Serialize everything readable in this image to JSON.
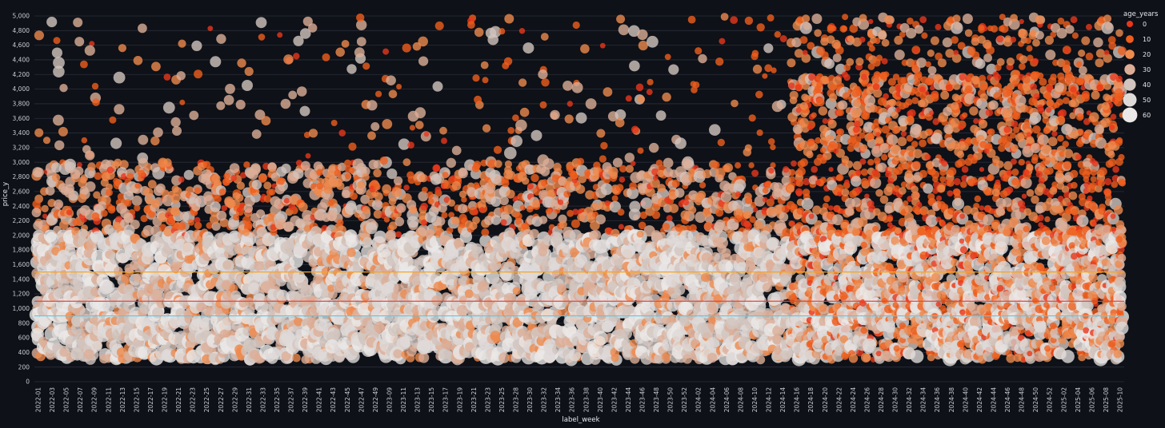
{
  "chart_data": {
    "type": "scatter",
    "xlabel": "label_week",
    "ylabel": "price_y",
    "ylim": [
      0,
      5000
    ],
    "y_ticks": [
      "0",
      "200",
      "400",
      "600",
      "800",
      "1,000",
      "1,200",
      "1,400",
      "1,600",
      "1,800",
      "2,000",
      "2,200",
      "2,400",
      "2,600",
      "2,800",
      "3,000",
      "3,200",
      "3,400",
      "3,600",
      "3,800",
      "4,000",
      "4,200",
      "4,400",
      "4,600",
      "4,800",
      "5,000"
    ],
    "y_tick_values": [
      0,
      200,
      400,
      600,
      800,
      1000,
      1200,
      1400,
      1600,
      1800,
      2000,
      2200,
      2400,
      2600,
      2800,
      3000,
      3200,
      3400,
      3600,
      3800,
      4000,
      4200,
      4400,
      4600,
      4800,
      5000
    ],
    "x_start_week": "2022-01",
    "x_end_week": "2025-10",
    "x_tick_labels": [
      "2022-01",
      "2022-03",
      "2022-05",
      "2022-07",
      "2022-09",
      "2022-11",
      "2022-13",
      "2022-15",
      "2022-17",
      "2022-19",
      "2022-21",
      "2022-23",
      "2022-25",
      "2022-27",
      "2022-29",
      "2022-31",
      "2022-33",
      "2022-35",
      "2022-37",
      "2022-39",
      "2022-41",
      "2022-43",
      "2022-45",
      "2022-47",
      "2022-49",
      "2023-09",
      "2023-11",
      "2023-13",
      "2023-15",
      "2023-17",
      "2023-19",
      "2023-21",
      "2023-23",
      "2023-25",
      "2023-28",
      "2023-30",
      "2023-32",
      "2023-34",
      "2023-36",
      "2023-38",
      "2023-40",
      "2023-42",
      "2023-44",
      "2023-46",
      "2023-48",
      "2023-50",
      "2023-52",
      "2024-02",
      "2024-04",
      "2024-06",
      "2024-08",
      "2024-10",
      "2024-12",
      "2024-14",
      "2024-16",
      "2024-18",
      "2024-20",
      "2024-22",
      "2024-24",
      "2024-26",
      "2024-28",
      "2024-30",
      "2024-32",
      "2024-34",
      "2024-36",
      "2024-38",
      "2024-40",
      "2024-42",
      "2024-44",
      "2024-46",
      "2024-48",
      "2024-50",
      "2024-52",
      "2025-02",
      "2025-04",
      "2025-06",
      "2025-08",
      "2025-10"
    ],
    "reference_lines": [
      {
        "y": 1500,
        "color": "#f5a623"
      },
      {
        "y": 1100,
        "color": "#e8453c"
      },
      {
        "y": 900,
        "color": "#5bc8e8"
      }
    ],
    "legend": {
      "title": "age_years",
      "placement": "top-right",
      "entries": [
        {
          "label": "0",
          "color": "#e8371b"
        },
        {
          "label": "10",
          "color": "#ef5e1d"
        },
        {
          "label": "20",
          "color": "#ee8a4e"
        },
        {
          "label": "30",
          "color": "#dcae97"
        },
        {
          "label": "40",
          "color": "#d2c4be"
        },
        {
          "label": "50",
          "color": "#dedad8"
        },
        {
          "label": "60",
          "color": "#ebe8e7"
        }
      ]
    },
    "density_description_values": {
      "point_age_range": [
        0,
        60
      ],
      "price_floor": 300,
      "early_period_typical_max": 3000,
      "late_period_start_week": "2024-12",
      "late_period_typical_max": 5000
    },
    "grid": true
  }
}
